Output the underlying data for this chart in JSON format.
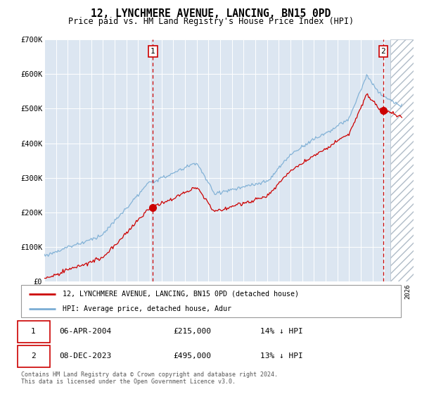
{
  "title": "12, LYNCHMERE AVENUE, LANCING, BN15 0PD",
  "subtitle": "Price paid vs. HM Land Registry's House Price Index (HPI)",
  "legend_line1": "12, LYNCHMERE AVENUE, LANCING, BN15 0PD (detached house)",
  "legend_line2": "HPI: Average price, detached house, Adur",
  "sale1_date": "06-APR-2004",
  "sale1_price": "£215,000",
  "sale1_hpi": "14% ↓ HPI",
  "sale2_date": "08-DEC-2023",
  "sale2_price": "£495,000",
  "sale2_hpi": "13% ↓ HPI",
  "footer": "Contains HM Land Registry data © Crown copyright and database right 2024.\nThis data is licensed under the Open Government Licence v3.0.",
  "red_color": "#cc0000",
  "blue_color": "#7aadd4",
  "background_color": "#dce6f1",
  "ylim": [
    0,
    700000
  ],
  "yticks": [
    0,
    100000,
    200000,
    300000,
    400000,
    500000,
    600000,
    700000
  ],
  "ytick_labels": [
    "£0",
    "£100K",
    "£200K",
    "£300K",
    "£400K",
    "£500K",
    "£600K",
    "£700K"
  ],
  "sale1_year": 2004.27,
  "sale2_year": 2023.92,
  "hatch_start_year": 2024.5,
  "xlim_start": 1995.0,
  "xlim_end": 2026.5
}
